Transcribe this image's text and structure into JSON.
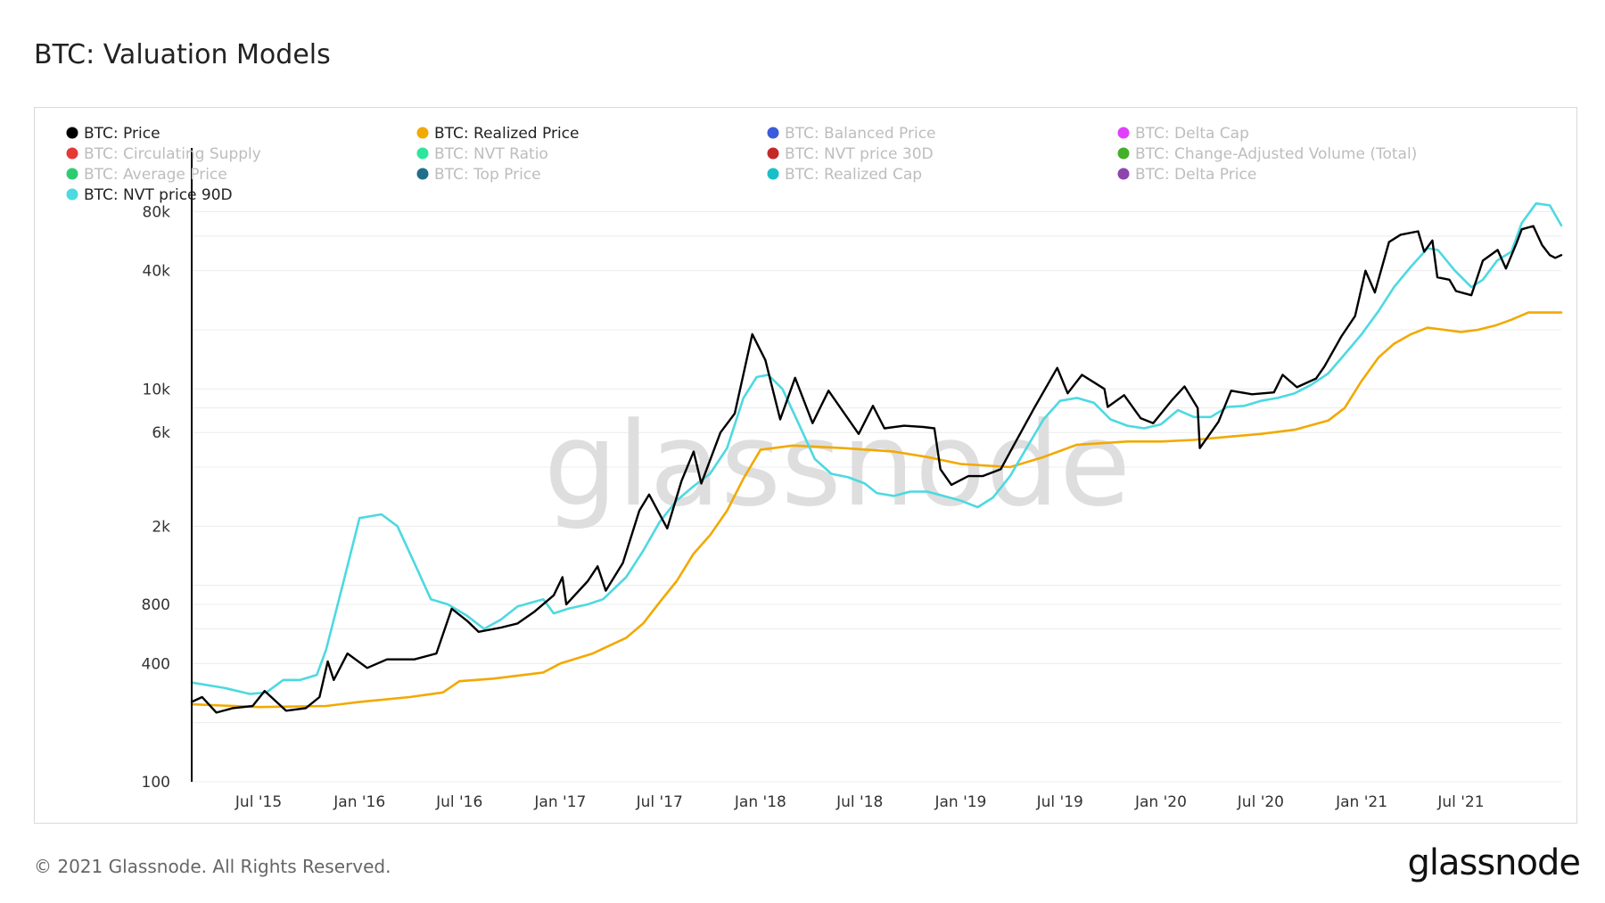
{
  "page": {
    "title": "BTC: Valuation Models",
    "copyright": "© 2021 Glassnode. All Rights Reserved.",
    "logo_text": "glassnode",
    "watermark_text": "glassnode"
  },
  "chart_data": {
    "type": "line",
    "yscale": "log",
    "ylim": [
      100,
      100000
    ],
    "y_ticks": [
      {
        "value": 100,
        "label": "100"
      },
      {
        "value": 400,
        "label": "400"
      },
      {
        "value": 800,
        "label": "800"
      },
      {
        "value": 2000,
        "label": "2k"
      },
      {
        "value": 6000,
        "label": "6k"
      },
      {
        "value": 10000,
        "label": "10k"
      },
      {
        "value": 40000,
        "label": "40k"
      },
      {
        "value": 80000,
        "label": "80k"
      }
    ],
    "y_gridlines": [
      100,
      200,
      400,
      600,
      800,
      1000,
      2000,
      4000,
      6000,
      8000,
      10000,
      20000,
      40000,
      60000,
      80000
    ],
    "xlim": [
      "2015-03-01",
      "2021-12-31"
    ],
    "x_ticks": [
      {
        "date": "2015-07-01",
        "label": "Jul '15"
      },
      {
        "date": "2016-01-01",
        "label": "Jan '16"
      },
      {
        "date": "2016-07-01",
        "label": "Jul '16"
      },
      {
        "date": "2017-01-01",
        "label": "Jan '17"
      },
      {
        "date": "2017-07-01",
        "label": "Jul '17"
      },
      {
        "date": "2018-01-01",
        "label": "Jan '18"
      },
      {
        "date": "2018-07-01",
        "label": "Jul '18"
      },
      {
        "date": "2019-01-01",
        "label": "Jan '19"
      },
      {
        "date": "2019-07-01",
        "label": "Jul '19"
      },
      {
        "date": "2020-01-01",
        "label": "Jan '20"
      },
      {
        "date": "2020-07-01",
        "label": "Jul '20"
      },
      {
        "date": "2021-01-01",
        "label": "Jan '21"
      },
      {
        "date": "2021-07-01",
        "label": "Jul '21"
      }
    ],
    "legend": [
      {
        "name": "BTC: Price",
        "color": "#000000",
        "active": true
      },
      {
        "name": "BTC: Realized Price",
        "color": "#f2a900",
        "active": true
      },
      {
        "name": "BTC: Balanced Price",
        "color": "#3b5bdb",
        "active": false
      },
      {
        "name": "BTC: Delta Cap",
        "color": "#e040fb",
        "active": false
      },
      {
        "name": "BTC: Circulating Supply",
        "color": "#e53935",
        "active": false
      },
      {
        "name": "BTC: NVT Ratio",
        "color": "#2ee59d",
        "active": false
      },
      {
        "name": "BTC: NVT price 30D",
        "color": "#c62828",
        "active": false
      },
      {
        "name": "BTC: Change-Adjusted Volume (Total)",
        "color": "#43b02a",
        "active": false
      },
      {
        "name": "BTC: Average Price",
        "color": "#2ecc71",
        "active": false
      },
      {
        "name": "BTC: Top Price",
        "color": "#1f6f8b",
        "active": false
      },
      {
        "name": "BTC: Realized Cap",
        "color": "#17c0c8",
        "active": false
      },
      {
        "name": "BTC: Delta Price",
        "color": "#8e44ad",
        "active": false
      },
      {
        "name": "BTC: NVT price 90D",
        "color": "#4dd9e0",
        "active": true
      }
    ],
    "series": [
      {
        "name": "BTC: Price",
        "color": "#000000",
        "points": [
          [
            "2015-03-01",
            255
          ],
          [
            "2015-03-20",
            270
          ],
          [
            "2015-04-15",
            225
          ],
          [
            "2015-05-15",
            237
          ],
          [
            "2015-06-20",
            243
          ],
          [
            "2015-07-12",
            290
          ],
          [
            "2015-08-20",
            230
          ],
          [
            "2015-09-25",
            237
          ],
          [
            "2015-10-20",
            270
          ],
          [
            "2015-11-04",
            410
          ],
          [
            "2015-11-15",
            330
          ],
          [
            "2015-12-10",
            450
          ],
          [
            "2016-01-15",
            380
          ],
          [
            "2016-02-20",
            420
          ],
          [
            "2016-04-10",
            420
          ],
          [
            "2016-05-20",
            450
          ],
          [
            "2016-06-17",
            760
          ],
          [
            "2016-07-15",
            660
          ],
          [
            "2016-08-05",
            580
          ],
          [
            "2016-09-15",
            610
          ],
          [
            "2016-10-15",
            640
          ],
          [
            "2016-11-15",
            735
          ],
          [
            "2016-12-20",
            890
          ],
          [
            "2017-01-05",
            1100
          ],
          [
            "2017-01-12",
            800
          ],
          [
            "2017-02-20",
            1050
          ],
          [
            "2017-03-10",
            1250
          ],
          [
            "2017-03-25",
            940
          ],
          [
            "2017-04-25",
            1300
          ],
          [
            "2017-05-25",
            2400
          ],
          [
            "2017-06-12",
            2900
          ],
          [
            "2017-07-15",
            1950
          ],
          [
            "2017-08-10",
            3400
          ],
          [
            "2017-09-01",
            4800
          ],
          [
            "2017-09-15",
            3300
          ],
          [
            "2017-10-20",
            6000
          ],
          [
            "2017-11-15",
            7500
          ],
          [
            "2017-12-17",
            19000
          ],
          [
            "2018-01-10",
            14000
          ],
          [
            "2018-02-06",
            7000
          ],
          [
            "2018-03-05",
            11400
          ],
          [
            "2018-04-06",
            6700
          ],
          [
            "2018-05-05",
            9800
          ],
          [
            "2018-06-29",
            5900
          ],
          [
            "2018-07-25",
            8200
          ],
          [
            "2018-08-15",
            6300
          ],
          [
            "2018-09-20",
            6500
          ],
          [
            "2018-10-25",
            6400
          ],
          [
            "2018-11-14",
            6300
          ],
          [
            "2018-11-25",
            3900
          ],
          [
            "2018-12-15",
            3250
          ],
          [
            "2019-01-15",
            3600
          ],
          [
            "2019-02-10",
            3600
          ],
          [
            "2019-03-15",
            3900
          ],
          [
            "2019-04-05",
            5000
          ],
          [
            "2019-05-15",
            8000
          ],
          [
            "2019-06-26",
            12800
          ],
          [
            "2019-07-15",
            9500
          ],
          [
            "2019-08-10",
            11800
          ],
          [
            "2019-09-20",
            10000
          ],
          [
            "2019-09-26",
            8100
          ],
          [
            "2019-10-26",
            9300
          ],
          [
            "2019-11-25",
            7100
          ],
          [
            "2019-12-18",
            6700
          ],
          [
            "2020-01-20",
            8700
          ],
          [
            "2020-02-13",
            10300
          ],
          [
            "2020-03-08",
            8000
          ],
          [
            "2020-03-12",
            5000
          ],
          [
            "2020-04-15",
            6800
          ],
          [
            "2020-05-08",
            9800
          ],
          [
            "2020-06-15",
            9400
          ],
          [
            "2020-07-25",
            9600
          ],
          [
            "2020-08-10",
            11800
          ],
          [
            "2020-09-05",
            10200
          ],
          [
            "2020-10-10",
            11300
          ],
          [
            "2020-10-25",
            13000
          ],
          [
            "2020-11-25",
            18500
          ],
          [
            "2020-12-20",
            23500
          ],
          [
            "2021-01-08",
            40000
          ],
          [
            "2021-01-25",
            31000
          ],
          [
            "2021-02-20",
            56000
          ],
          [
            "2021-03-13",
            61000
          ],
          [
            "2021-04-14",
            63500
          ],
          [
            "2021-04-25",
            50000
          ],
          [
            "2021-05-10",
            57000
          ],
          [
            "2021-05-19",
            37000
          ],
          [
            "2021-06-10",
            36000
          ],
          [
            "2021-06-22",
            31500
          ],
          [
            "2021-07-20",
            30000
          ],
          [
            "2021-08-10",
            45000
          ],
          [
            "2021-09-06",
            51000
          ],
          [
            "2021-09-21",
            41000
          ],
          [
            "2021-10-10",
            55000
          ],
          [
            "2021-10-20",
            65000
          ],
          [
            "2021-11-10",
            67500
          ],
          [
            "2021-11-26",
            54000
          ],
          [
            "2021-12-10",
            48000
          ],
          [
            "2021-12-20",
            46500
          ],
          [
            "2021-12-31",
            48000
          ]
        ]
      },
      {
        "name": "BTC: Realized Price",
        "color": "#f2a900",
        "points": [
          [
            "2015-03-01",
            248
          ],
          [
            "2015-07-01",
            240
          ],
          [
            "2015-11-01",
            243
          ],
          [
            "2016-01-01",
            255
          ],
          [
            "2016-04-01",
            270
          ],
          [
            "2016-06-01",
            285
          ],
          [
            "2016-07-01",
            325
          ],
          [
            "2016-09-01",
            335
          ],
          [
            "2016-12-01",
            360
          ],
          [
            "2017-01-01",
            400
          ],
          [
            "2017-03-01",
            450
          ],
          [
            "2017-05-01",
            540
          ],
          [
            "2017-06-01",
            640
          ],
          [
            "2017-07-01",
            820
          ],
          [
            "2017-08-01",
            1050
          ],
          [
            "2017-09-01",
            1450
          ],
          [
            "2017-10-01",
            1800
          ],
          [
            "2017-11-01",
            2400
          ],
          [
            "2017-12-01",
            3500
          ],
          [
            "2018-01-01",
            4900
          ],
          [
            "2018-03-01",
            5150
          ],
          [
            "2018-06-01",
            5000
          ],
          [
            "2018-09-01",
            4800
          ],
          [
            "2018-11-01",
            4500
          ],
          [
            "2019-01-01",
            4150
          ],
          [
            "2019-04-01",
            4000
          ],
          [
            "2019-06-01",
            4500
          ],
          [
            "2019-08-01",
            5200
          ],
          [
            "2019-11-01",
            5400
          ],
          [
            "2020-01-01",
            5400
          ],
          [
            "2020-03-01",
            5500
          ],
          [
            "2020-05-01",
            5700
          ],
          [
            "2020-07-01",
            5900
          ],
          [
            "2020-09-01",
            6200
          ],
          [
            "2020-11-01",
            6900
          ],
          [
            "2020-12-01",
            8000
          ],
          [
            "2021-01-01",
            11000
          ],
          [
            "2021-02-01",
            14500
          ],
          [
            "2021-03-01",
            17000
          ],
          [
            "2021-04-01",
            19000
          ],
          [
            "2021-05-01",
            20500
          ],
          [
            "2021-06-01",
            20000
          ],
          [
            "2021-07-01",
            19500
          ],
          [
            "2021-08-01",
            20000
          ],
          [
            "2021-09-01",
            21000
          ],
          [
            "2021-10-01",
            22500
          ],
          [
            "2021-11-01",
            24500
          ],
          [
            "2021-12-31",
            24500
          ]
        ]
      },
      {
        "name": "BTC: NVT price 90D",
        "color": "#4dd9e0",
        "points": [
          [
            "2015-03-01",
            320
          ],
          [
            "2015-05-01",
            300
          ],
          [
            "2015-06-15",
            280
          ],
          [
            "2015-07-15",
            285
          ],
          [
            "2015-08-15",
            330
          ],
          [
            "2015-09-15",
            330
          ],
          [
            "2015-10-15",
            350
          ],
          [
            "2015-11-01",
            470
          ],
          [
            "2015-12-01",
            1000
          ],
          [
            "2016-01-01",
            2200
          ],
          [
            "2016-02-10",
            2300
          ],
          [
            "2016-03-10",
            2000
          ],
          [
            "2016-04-10",
            1300
          ],
          [
            "2016-05-10",
            850
          ],
          [
            "2016-06-10",
            800
          ],
          [
            "2016-07-15",
            700
          ],
          [
            "2016-08-15",
            600
          ],
          [
            "2016-09-15",
            670
          ],
          [
            "2016-10-15",
            780
          ],
          [
            "2016-12-01",
            850
          ],
          [
            "2016-12-20",
            720
          ],
          [
            "2017-01-15",
            760
          ],
          [
            "2017-02-20",
            800
          ],
          [
            "2017-03-20",
            850
          ],
          [
            "2017-05-01",
            1100
          ],
          [
            "2017-06-01",
            1500
          ],
          [
            "2017-07-01",
            2100
          ],
          [
            "2017-08-01",
            2700
          ],
          [
            "2017-09-01",
            3200
          ],
          [
            "2017-10-01",
            3700
          ],
          [
            "2017-11-01",
            5000
          ],
          [
            "2017-12-01",
            9000
          ],
          [
            "2017-12-25",
            11500
          ],
          [
            "2018-01-15",
            11800
          ],
          [
            "2018-02-10",
            10000
          ],
          [
            "2018-03-10",
            6800
          ],
          [
            "2018-04-10",
            4400
          ],
          [
            "2018-05-10",
            3700
          ],
          [
            "2018-06-10",
            3550
          ],
          [
            "2018-07-10",
            3300
          ],
          [
            "2018-08-01",
            2950
          ],
          [
            "2018-09-01",
            2850
          ],
          [
            "2018-10-01",
            3000
          ],
          [
            "2018-11-01",
            3000
          ],
          [
            "2018-12-01",
            2850
          ],
          [
            "2019-01-01",
            2700
          ],
          [
            "2019-02-01",
            2500
          ],
          [
            "2019-03-01",
            2800
          ],
          [
            "2019-04-01",
            3600
          ],
          [
            "2019-05-01",
            5000
          ],
          [
            "2019-06-01",
            7000
          ],
          [
            "2019-07-01",
            8700
          ],
          [
            "2019-08-01",
            9000
          ],
          [
            "2019-09-01",
            8500
          ],
          [
            "2019-10-01",
            7000
          ],
          [
            "2019-11-01",
            6500
          ],
          [
            "2019-12-01",
            6300
          ],
          [
            "2020-01-01",
            6600
          ],
          [
            "2020-02-01",
            7800
          ],
          [
            "2020-03-01",
            7200
          ],
          [
            "2020-04-01",
            7200
          ],
          [
            "2020-05-01",
            8100
          ],
          [
            "2020-06-01",
            8200
          ],
          [
            "2020-07-01",
            8700
          ],
          [
            "2020-08-01",
            9000
          ],
          [
            "2020-09-01",
            9500
          ],
          [
            "2020-10-01",
            10500
          ],
          [
            "2020-11-01",
            12000
          ],
          [
            "2020-12-01",
            15000
          ],
          [
            "2021-01-01",
            19000
          ],
          [
            "2021-02-01",
            25000
          ],
          [
            "2021-03-01",
            33000
          ],
          [
            "2021-04-01",
            42000
          ],
          [
            "2021-05-01",
            52000
          ],
          [
            "2021-05-20",
            51000
          ],
          [
            "2021-06-20",
            40000
          ],
          [
            "2021-07-20",
            33000
          ],
          [
            "2021-08-10",
            36000
          ],
          [
            "2021-09-05",
            45000
          ],
          [
            "2021-10-01",
            50000
          ],
          [
            "2021-10-20",
            70000
          ],
          [
            "2021-11-15",
            88000
          ],
          [
            "2021-12-10",
            86000
          ],
          [
            "2021-12-31",
            68000
          ]
        ]
      }
    ]
  }
}
